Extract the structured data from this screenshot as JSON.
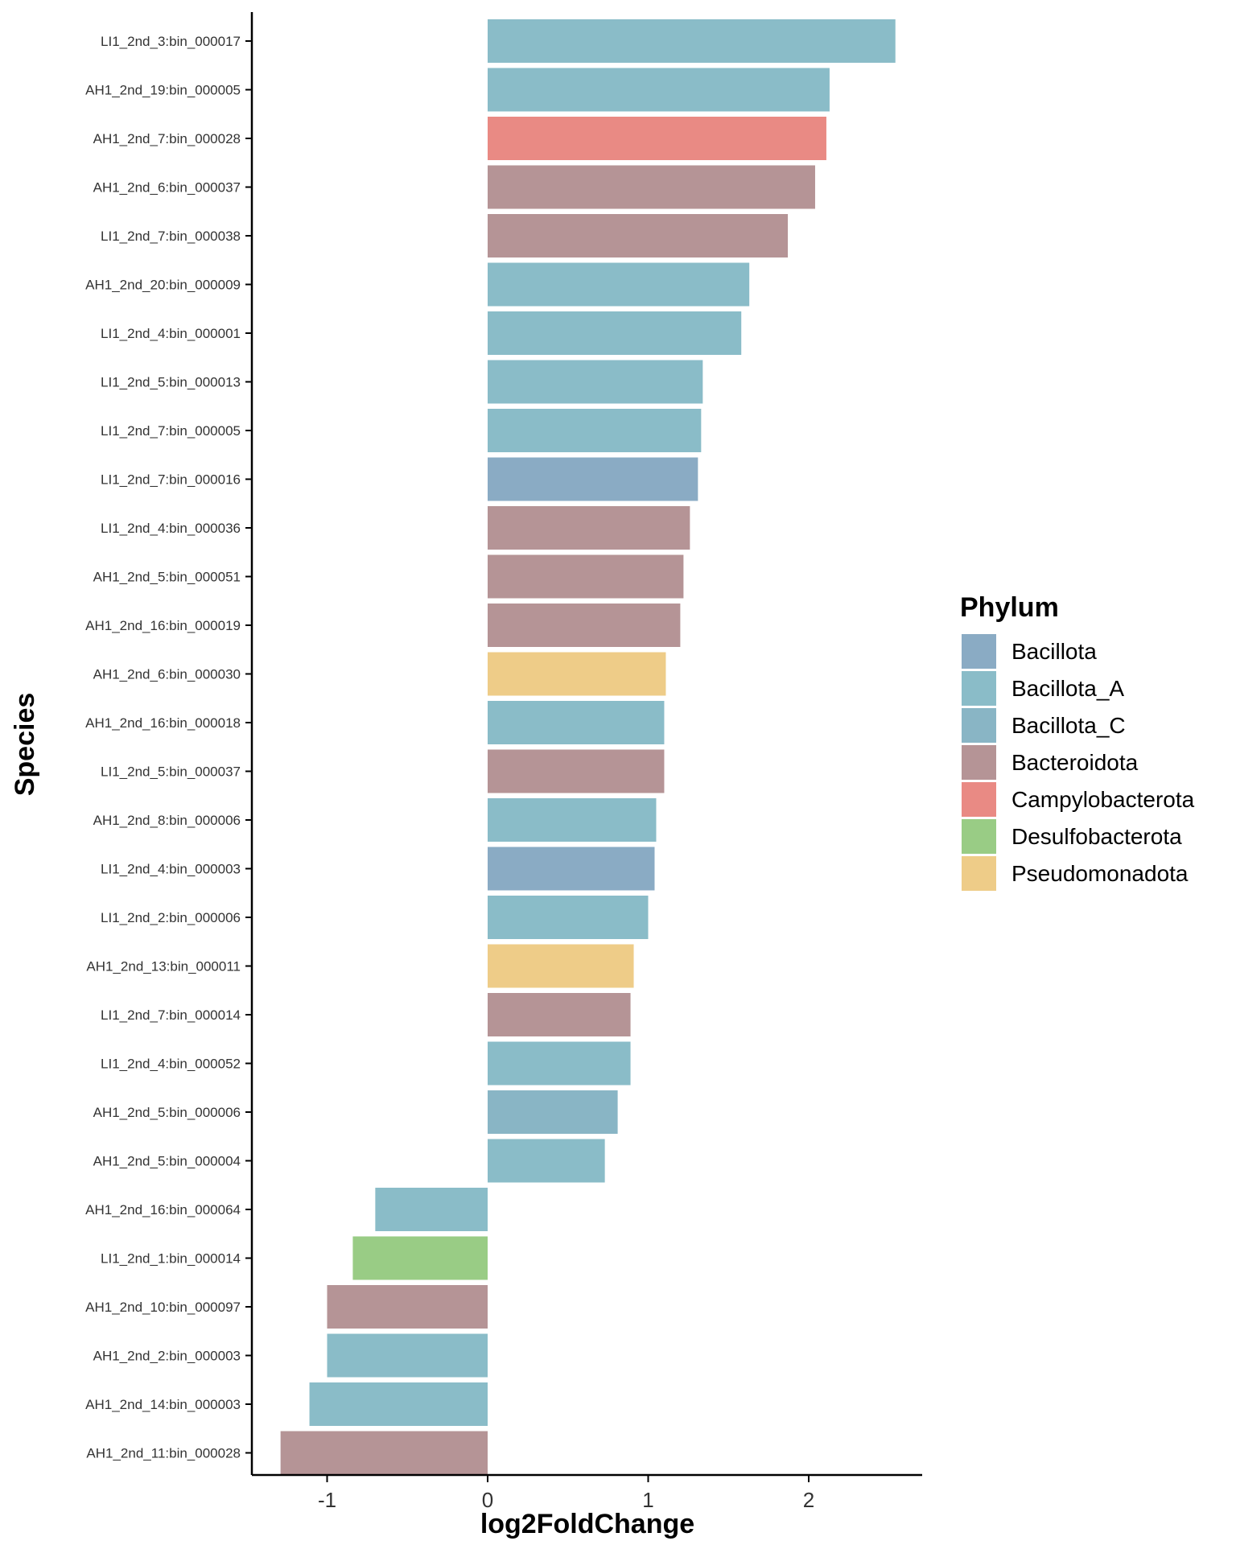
{
  "chart_data": {
    "type": "bar",
    "orientation": "horizontal",
    "xlabel": "log2FoldChange",
    "ylabel": "Species",
    "xlim": [
      -1.47,
      2.72
    ],
    "xticks": [
      -1,
      0,
      1,
      2
    ],
    "xtick_labels": [
      "-1",
      "0",
      "1",
      "2"
    ],
    "grid": false,
    "legend": {
      "title": "Phylum",
      "placement": "right",
      "entries": [
        {
          "name": "Bacillota",
          "color": "#8aabc4"
        },
        {
          "name": "Bacillota_A",
          "color": "#8abcc8"
        },
        {
          "name": "Bacillota_C",
          "color": "#89b5c5"
        },
        {
          "name": "Bacteroidota",
          "color": "#b59496"
        },
        {
          "name": "Campylobacterota",
          "color": "#e98a84"
        },
        {
          "name": "Desulfobacterota",
          "color": "#99cc85"
        },
        {
          "name": "Pseudomonadota",
          "color": "#eecc88"
        }
      ]
    },
    "bars": [
      {
        "category": "LI1_2nd_3:bin_000017",
        "value": 2.54,
        "phylum": "Bacillota_A"
      },
      {
        "category": "AH1_2nd_19:bin_000005",
        "value": 2.13,
        "phylum": "Bacillota_A"
      },
      {
        "category": "AH1_2nd_7:bin_000028",
        "value": 2.11,
        "phylum": "Campylobacterota"
      },
      {
        "category": "AH1_2nd_6:bin_000037",
        "value": 2.04,
        "phylum": "Bacteroidota"
      },
      {
        "category": "LI1_2nd_7:bin_000038",
        "value": 1.87,
        "phylum": "Bacteroidota"
      },
      {
        "category": "AH1_2nd_20:bin_000009",
        "value": 1.63,
        "phylum": "Bacillota_A"
      },
      {
        "category": "LI1_2nd_4:bin_000001",
        "value": 1.58,
        "phylum": "Bacillota_A"
      },
      {
        "category": "LI1_2nd_5:bin_000013",
        "value": 1.34,
        "phylum": "Bacillota_A"
      },
      {
        "category": "LI1_2nd_7:bin_000005",
        "value": 1.33,
        "phylum": "Bacillota_A"
      },
      {
        "category": "LI1_2nd_7:bin_000016",
        "value": 1.31,
        "phylum": "Bacillota"
      },
      {
        "category": "LI1_2nd_4:bin_000036",
        "value": 1.26,
        "phylum": "Bacteroidota"
      },
      {
        "category": "AH1_2nd_5:bin_000051",
        "value": 1.22,
        "phylum": "Bacteroidota"
      },
      {
        "category": "AH1_2nd_16:bin_000019",
        "value": 1.2,
        "phylum": "Bacteroidota"
      },
      {
        "category": "AH1_2nd_6:bin_000030",
        "value": 1.11,
        "phylum": "Pseudomonadota"
      },
      {
        "category": "AH1_2nd_16:bin_000018",
        "value": 1.1,
        "phylum": "Bacillota_A"
      },
      {
        "category": "LI1_2nd_5:bin_000037",
        "value": 1.1,
        "phylum": "Bacteroidota"
      },
      {
        "category": "AH1_2nd_8:bin_000006",
        "value": 1.05,
        "phylum": "Bacillota_A"
      },
      {
        "category": "LI1_2nd_4:bin_000003",
        "value": 1.04,
        "phylum": "Bacillota"
      },
      {
        "category": "LI1_2nd_2:bin_000006",
        "value": 1.0,
        "phylum": "Bacillota_A"
      },
      {
        "category": "AH1_2nd_13:bin_000011",
        "value": 0.91,
        "phylum": "Pseudomonadota"
      },
      {
        "category": "LI1_2nd_7:bin_000014",
        "value": 0.89,
        "phylum": "Bacteroidota"
      },
      {
        "category": "LI1_2nd_4:bin_000052",
        "value": 0.89,
        "phylum": "Bacillota_A"
      },
      {
        "category": "AH1_2nd_5:bin_000006",
        "value": 0.81,
        "phylum": "Bacillota_C"
      },
      {
        "category": "AH1_2nd_5:bin_000004",
        "value": 0.73,
        "phylum": "Bacillota_A"
      },
      {
        "category": "AH1_2nd_16:bin_000064",
        "value": -0.7,
        "phylum": "Bacillota_A"
      },
      {
        "category": "LI1_2nd_1:bin_000014",
        "value": -0.84,
        "phylum": "Desulfobacterota"
      },
      {
        "category": "AH1_2nd_10:bin_000097",
        "value": -1.0,
        "phylum": "Bacteroidota"
      },
      {
        "category": "AH1_2nd_2:bin_000003",
        "value": -1.0,
        "phylum": "Bacillota_A"
      },
      {
        "category": "AH1_2nd_14:bin_000003",
        "value": -1.11,
        "phylum": "Bacillota_A"
      },
      {
        "category": "AH1_2nd_11:bin_000028",
        "value": -1.29,
        "phylum": "Bacteroidota"
      }
    ]
  }
}
